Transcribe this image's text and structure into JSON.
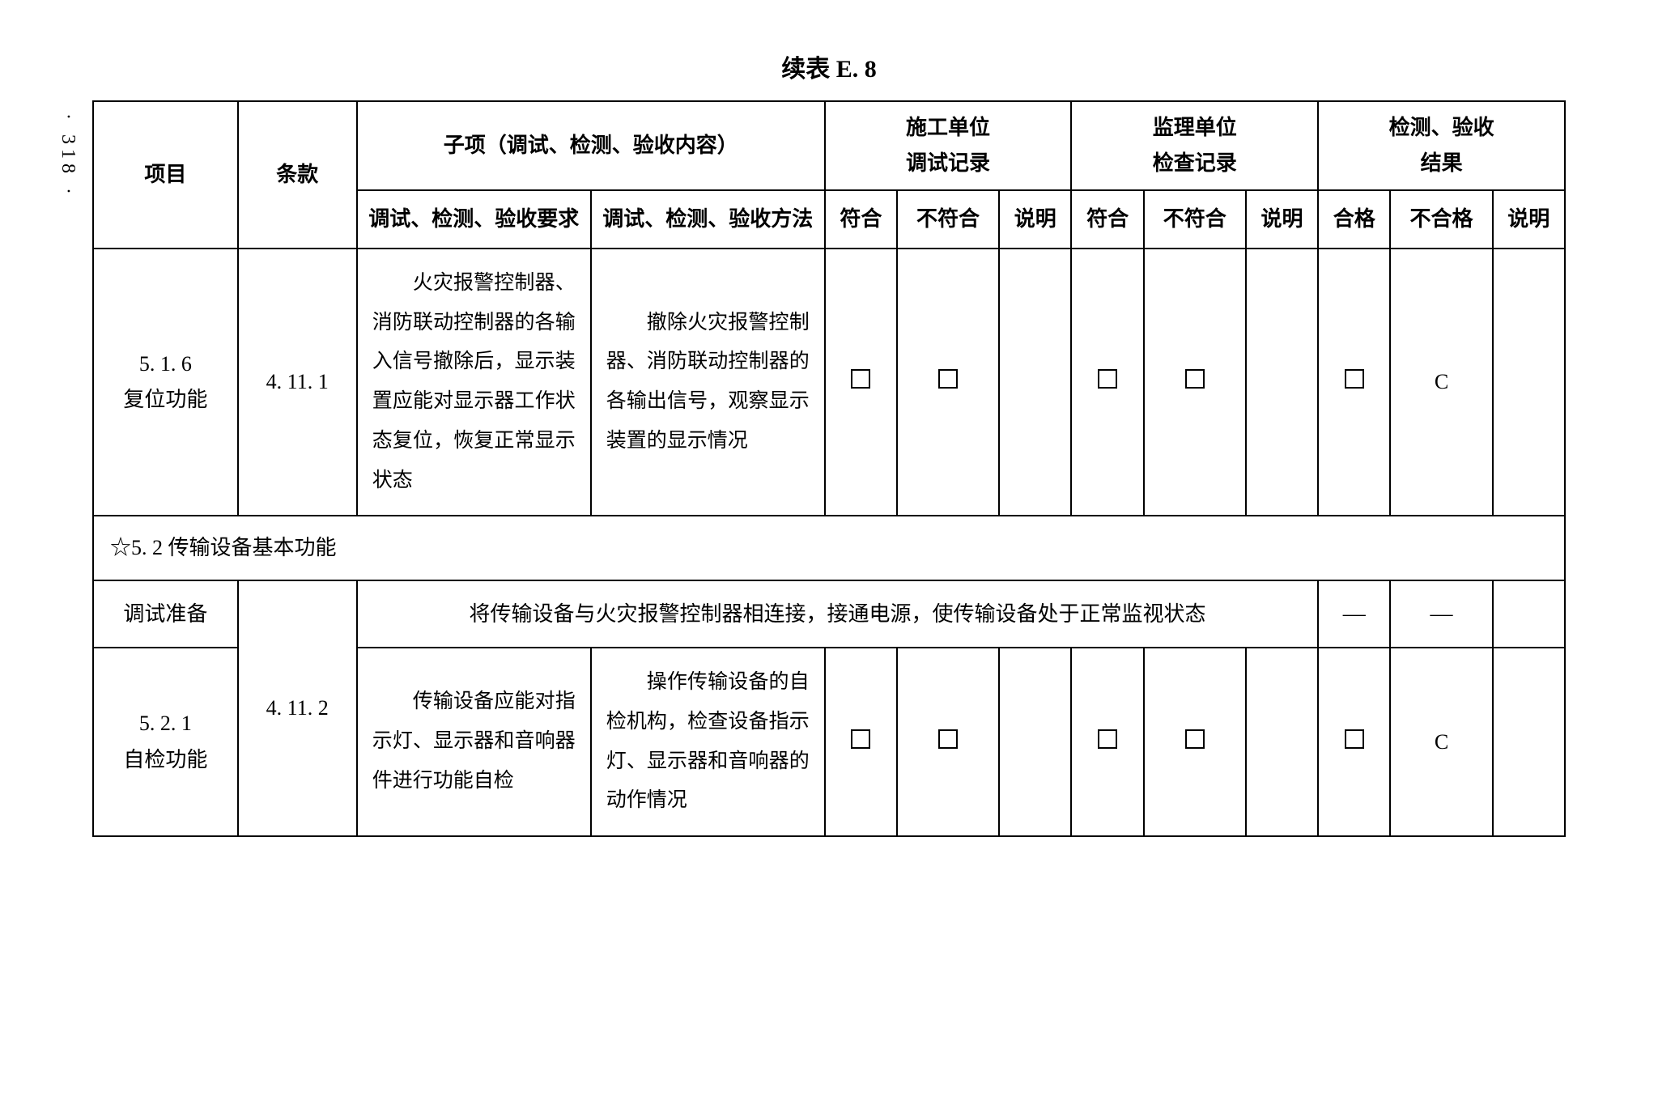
{
  "page_number": "· 318 ·",
  "title": "续表 E. 8",
  "headers": {
    "col_project": "项目",
    "col_clause": "条款",
    "col_subitem": "子项（调试、检测、验收内容）",
    "col_construction": "施工单位\n调试记录",
    "col_supervision": "监理单位\n检查记录",
    "col_result": "检测、验收\n结果",
    "sub_req": "调试、检测、验收要求",
    "sub_method": "调试、检测、验收方法",
    "sub_conform": "符合",
    "sub_nonconform": "不符合",
    "sub_desc": "说明",
    "sub_pass": "合格",
    "sub_fail": "不合格"
  },
  "row1": {
    "project_num": "5. 1. 6",
    "project_name": "复位功能",
    "clause": "4. 11. 1",
    "requirement": "火灾报警控制器、消防联动控制器的各输入信号撤除后，显示装置应能对显示器工作状态复位，恢复正常显示状态",
    "method": "撤除火灾报警控制器、消防联动控制器的各输出信号，观察显示装置的显示情况",
    "result_fail": "C"
  },
  "section52": "☆5. 2 传输设备基本功能",
  "prep_row": {
    "label": "调试准备",
    "text": "将传输设备与火灾报警控制器相连接，接通电源，使传输设备处于正常监视状态",
    "dash": "—"
  },
  "row2": {
    "project_num": "5. 2. 1",
    "project_name": "自检功能",
    "clause": "4. 11. 2",
    "requirement": "传输设备应能对指示灯、显示器和音响器件进行功能自检",
    "method": "操作传输设备的自检机构，检查设备指示灯、显示器和音响器的动作情况",
    "result_fail": "C"
  },
  "col_widths": {
    "project": 160,
    "clause": 130,
    "req": 260,
    "method": 260,
    "check": 85,
    "noncheck": 115,
    "desc": 85
  }
}
